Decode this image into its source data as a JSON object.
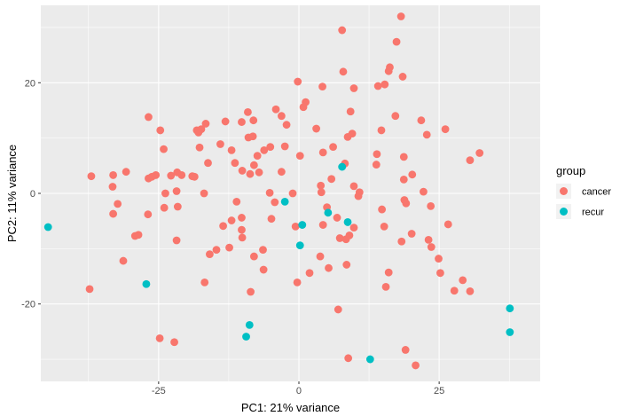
{
  "chart_data": {
    "type": "scatter",
    "title": "",
    "xlabel": "PC1: 21% variance",
    "ylabel": "PC2: 11% variance",
    "xlim": [
      -46,
      43
    ],
    "ylim": [
      -34,
      34
    ],
    "x_ticks": [
      -25,
      0,
      25
    ],
    "x_tick_labels": [
      "-25",
      "0",
      "25"
    ],
    "y_ticks": [
      -20,
      0,
      20
    ],
    "y_tick_labels": [
      "-20",
      "0",
      "20"
    ],
    "grid": true,
    "legend": {
      "title": "group",
      "position": "right",
      "entries": [
        {
          "label": "cancer",
          "color": "#F8766D"
        },
        {
          "label": "recur",
          "color": "#00BFC4"
        }
      ]
    },
    "series": [
      {
        "name": "cancer",
        "color": "#F8766D",
        "points": [
          [
            18.2,
            32.0
          ],
          [
            7.7,
            29.5
          ],
          [
            17.4,
            27.4
          ],
          [
            16.2,
            22.8
          ],
          [
            16.0,
            22.1
          ],
          [
            7.9,
            22.0
          ],
          [
            18.5,
            21.1
          ],
          [
            -0.2,
            20.2
          ],
          [
            4.2,
            19.3
          ],
          [
            9.8,
            19.0
          ],
          [
            14.1,
            19.4
          ],
          [
            15.3,
            19.7
          ],
          [
            1.2,
            16.5
          ],
          [
            0.8,
            15.6
          ],
          [
            -4.1,
            15.2
          ],
          [
            -9.1,
            14.7
          ],
          [
            9.2,
            14.8
          ],
          [
            17.2,
            14.0
          ],
          [
            -3.1,
            14.0
          ],
          [
            -26.8,
            13.8
          ],
          [
            -13.1,
            13.0
          ],
          [
            -10.2,
            12.9
          ],
          [
            -8.1,
            13.2
          ],
          [
            -2.2,
            12.4
          ],
          [
            3.1,
            11.7
          ],
          [
            21.8,
            13.2
          ],
          [
            -16.6,
            12.6
          ],
          [
            -17.4,
            11.6
          ],
          [
            -24.7,
            11.4
          ],
          [
            -18.2,
            11.4
          ],
          [
            -17.9,
            11.0
          ],
          [
            26.1,
            11.6
          ],
          [
            14.7,
            11.4
          ],
          [
            9.5,
            10.8
          ],
          [
            8.7,
            10.2
          ],
          [
            -9.0,
            10.1
          ],
          [
            -8.2,
            10.3
          ],
          [
            22.8,
            10.6
          ],
          [
            -14.0,
            8.9
          ],
          [
            -2.5,
            8.5
          ],
          [
            6.1,
            8.4
          ],
          [
            -5.1,
            8.4
          ],
          [
            -24.1,
            8.0
          ],
          [
            -6.2,
            7.8
          ],
          [
            -17.7,
            8.3
          ],
          [
            -12.0,
            7.8
          ],
          [
            4.3,
            7.4
          ],
          [
            0.2,
            6.8
          ],
          [
            32.2,
            7.3
          ],
          [
            -7.4,
            6.8
          ],
          [
            13.9,
            7.1
          ],
          [
            18.7,
            6.6
          ],
          [
            -16.2,
            5.5
          ],
          [
            -11.4,
            5.5
          ],
          [
            -8.0,
            5.1
          ],
          [
            8.2,
            5.4
          ],
          [
            13.8,
            5.2
          ],
          [
            30.5,
            6.0
          ],
          [
            -10.1,
            4.1
          ],
          [
            -20.9,
            3.3
          ],
          [
            -22.8,
            3.2
          ],
          [
            -7.1,
            3.8
          ],
          [
            -8.7,
            3.5
          ],
          [
            -3.1,
            3.9
          ],
          [
            20.2,
            3.4
          ],
          [
            -21.7,
            3.8
          ],
          [
            -37.0,
            3.1
          ],
          [
            -19.0,
            3.1
          ],
          [
            -18.6,
            3.0
          ],
          [
            -25.5,
            3.3
          ],
          [
            -26.2,
            3.0
          ],
          [
            -26.8,
            2.7
          ],
          [
            -30.8,
            3.9
          ],
          [
            -33.1,
            3.3
          ],
          [
            5.8,
            2.6
          ],
          [
            18.7,
            2.5
          ],
          [
            -33.2,
            1.2
          ],
          [
            9.8,
            1.3
          ],
          [
            3.9,
            1.4
          ],
          [
            -21.8,
            0.4
          ],
          [
            22.2,
            0.3
          ],
          [
            4.0,
            0.2
          ],
          [
            -23.8,
            0.0
          ],
          [
            -16.9,
            0.0
          ],
          [
            -1.1,
            0.0
          ],
          [
            -5.2,
            0.1
          ],
          [
            10.8,
            0.2
          ],
          [
            10.6,
            -0.5
          ],
          [
            18.8,
            -1.2
          ],
          [
            -11.1,
            -1.5
          ],
          [
            -4.3,
            -1.6
          ],
          [
            19.1,
            -1.8
          ],
          [
            -32.3,
            -1.9
          ],
          [
            23.5,
            -2.3
          ],
          [
            -21.6,
            -2.4
          ],
          [
            5.0,
            -2.5
          ],
          [
            -24.0,
            -2.6
          ],
          [
            14.8,
            -2.9
          ],
          [
            -33.1,
            -3.7
          ],
          [
            -26.9,
            -3.8
          ],
          [
            -10.2,
            -4.4
          ],
          [
            6.8,
            -4.4
          ],
          [
            -4.9,
            -4.6
          ],
          [
            -12.0,
            -4.9
          ],
          [
            -13.5,
            -5.9
          ],
          [
            -0.6,
            -6.0
          ],
          [
            4.3,
            -5.7
          ],
          [
            26.6,
            -5.6
          ],
          [
            9.8,
            -6.2
          ],
          [
            15.2,
            -6.0
          ],
          [
            -10.2,
            -6.6
          ],
          [
            20.1,
            -7.3
          ],
          [
            -28.6,
            -7.5
          ],
          [
            -29.2,
            -7.7
          ],
          [
            9.0,
            -7.6
          ],
          [
            -10.1,
            -8.0
          ],
          [
            7.3,
            -8.1
          ],
          [
            18.3,
            -8.7
          ],
          [
            -21.8,
            -8.5
          ],
          [
            8.4,
            -8.3
          ],
          [
            23.1,
            -8.4
          ],
          [
            23.6,
            -9.7
          ],
          [
            -12.4,
            -9.8
          ],
          [
            -6.4,
            -10.2
          ],
          [
            -14.7,
            -10.2
          ],
          [
            -8.0,
            -11.4
          ],
          [
            -15.9,
            -11.0
          ],
          [
            3.8,
            -11.4
          ],
          [
            -31.3,
            -12.2
          ],
          [
            24.9,
            -11.8
          ],
          [
            -6.3,
            -13.8
          ],
          [
            5.3,
            -13.5
          ],
          [
            8.5,
            -12.9
          ],
          [
            -37.3,
            -17.3
          ],
          [
            -0.3,
            -16.1
          ],
          [
            1.9,
            -14.4
          ],
          [
            16.0,
            -14.3
          ],
          [
            25.2,
            -14.4
          ],
          [
            29.2,
            -15.7
          ],
          [
            15.5,
            -16.9
          ],
          [
            27.7,
            -17.6
          ],
          [
            30.5,
            -17.7
          ],
          [
            -8.6,
            -17.8
          ],
          [
            -16.8,
            -16.1
          ],
          [
            7.0,
            -21.0
          ],
          [
            -24.8,
            -26.2
          ],
          [
            -22.2,
            -26.9
          ],
          [
            19.0,
            -28.3
          ],
          [
            8.8,
            -29.8
          ],
          [
            20.8,
            -31.1
          ]
        ]
      },
      {
        "name": "recur",
        "color": "#00BFC4",
        "points": [
          [
            -44.7,
            -6.1
          ],
          [
            -27.2,
            -16.4
          ],
          [
            -8.8,
            -23.8
          ],
          [
            -9.4,
            -25.9
          ],
          [
            12.7,
            -30.0
          ],
          [
            37.6,
            -20.8
          ],
          [
            37.6,
            -25.1
          ],
          [
            7.7,
            4.8
          ],
          [
            -2.5,
            -1.5
          ],
          [
            5.2,
            -3.5
          ],
          [
            8.7,
            -5.2
          ],
          [
            0.6,
            -5.7
          ],
          [
            0.2,
            -9.4
          ]
        ]
      }
    ]
  }
}
